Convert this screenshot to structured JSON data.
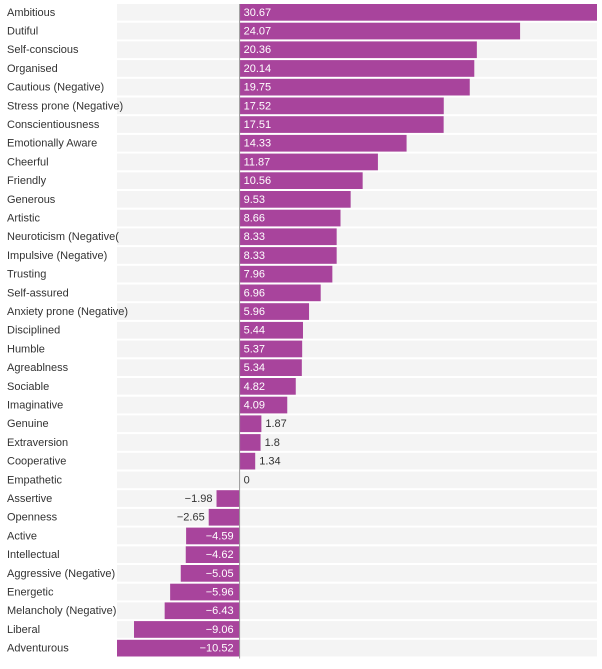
{
  "chart_data": {
    "type": "bar",
    "orientation": "horizontal",
    "color": "#a8449c",
    "categories": [
      "Ambitious",
      "Dutiful",
      "Self-conscious",
      "Organised",
      "Cautious (Negative)",
      "Stress prone (Negative)",
      "Conscientiousness",
      "Emotionally Aware",
      "Cheerful",
      "Friendly",
      "Generous",
      "Artistic",
      "Neuroticism (Negative(",
      "Impulsive (Negative)",
      "Trusting",
      "Self-assured",
      "Anxiety prone (Negative)",
      "Disciplined",
      "Humble",
      "Agreablness",
      "Sociable",
      "Imaginative",
      "Genuine",
      "Extraversion",
      "Cooperative",
      "Empathetic",
      "Assertive",
      "Openness",
      "Active",
      "Intellectual",
      "Aggressive (Negative)",
      "Energetic",
      "Melancholy (Negative)",
      "Liberal",
      "Adventurous"
    ],
    "values": [
      30.67,
      24.07,
      20.36,
      20.14,
      19.75,
      17.52,
      17.51,
      14.33,
      11.87,
      10.56,
      9.53,
      8.66,
      8.33,
      8.33,
      7.96,
      6.96,
      5.96,
      5.44,
      5.37,
      5.34,
      4.82,
      4.09,
      1.87,
      1.8,
      1.34,
      0,
      -1.98,
      -2.65,
      -4.59,
      -4.62,
      -5.05,
      -5.96,
      -6.43,
      -9.06,
      -10.52
    ],
    "value_labels": [
      "30.67",
      "24.07",
      "20.36",
      "20.14",
      "19.75",
      "17.52",
      "17.51",
      "14.33",
      "11.87",
      "10.56",
      "9.53",
      "8.66",
      "8.33",
      "8.33",
      "7.96",
      "6.96",
      "5.96",
      "5.44",
      "5.37",
      "5.34",
      "4.82",
      "4.09",
      "1.87",
      "1.8",
      "1.34",
      "0",
      "−1.98",
      "−2.65",
      "−4.59",
      "−4.62",
      "−5.05",
      "−5.96",
      "−6.43",
      "−9.06",
      "−10.52"
    ],
    "xlim": [
      -10.52,
      30.67
    ]
  }
}
